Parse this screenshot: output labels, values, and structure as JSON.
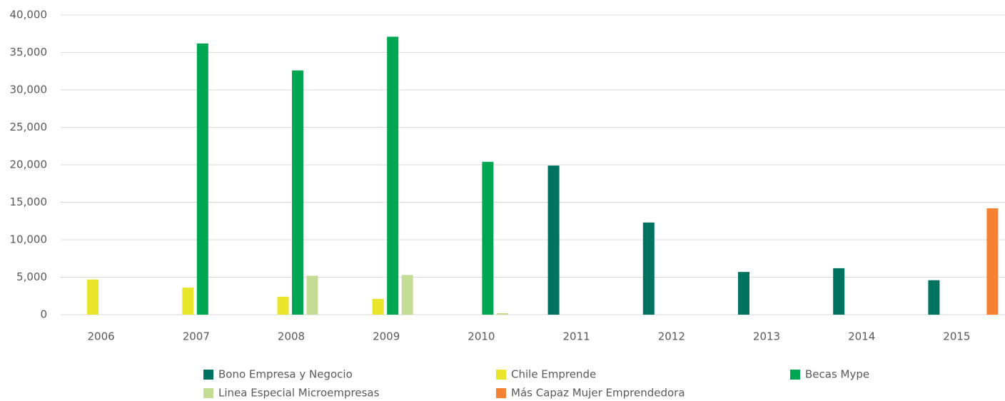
{
  "chart_data": {
    "type": "bar",
    "categories": [
      "2006",
      "2007",
      "2008",
      "2009",
      "2010",
      "2011",
      "2012",
      "2013",
      "2014",
      "2015"
    ],
    "series": [
      {
        "name": "Bono Empresa y Negocio",
        "color": "#007360",
        "values": [
          null,
          null,
          null,
          null,
          null,
          19900,
          12300,
          5700,
          6200,
          4600
        ]
      },
      {
        "name": "Chile Emprende",
        "color": "#e8e52a",
        "values": [
          4700,
          3600,
          2400,
          2100,
          null,
          null,
          null,
          null,
          null,
          null
        ]
      },
      {
        "name": "Becas Mype",
        "color": "#00a651",
        "values": [
          null,
          36200,
          32600,
          37100,
          20400,
          null,
          null,
          null,
          null,
          null
        ]
      },
      {
        "name": "Linea Especial Microempresas",
        "color": "#c5dc96",
        "values": [
          null,
          null,
          5200,
          5300,
          200,
          null,
          null,
          null,
          null,
          null
        ]
      },
      {
        "name": "Más Capaz Mujer Emprendedora",
        "color": "#f58233",
        "values": [
          null,
          null,
          null,
          null,
          null,
          null,
          null,
          null,
          null,
          14200
        ]
      }
    ],
    "ylim": [
      0,
      40000
    ],
    "yticks": [
      0,
      {
        "value": 5000,
        "label": "5,000"
      },
      {
        "value": 10000,
        "label": "10,000"
      },
      {
        "value": 15000,
        "label": "15,000"
      },
      {
        "value": 20000,
        "label": "20,000"
      },
      {
        "value": 25000,
        "label": "25,000"
      },
      {
        "value": 30000,
        "label": "30,000"
      },
      {
        "value": 35000,
        "label": "35,000"
      },
      {
        "value": 40000,
        "label": "40,000"
      }
    ],
    "grid": true,
    "legend": "bottom"
  }
}
